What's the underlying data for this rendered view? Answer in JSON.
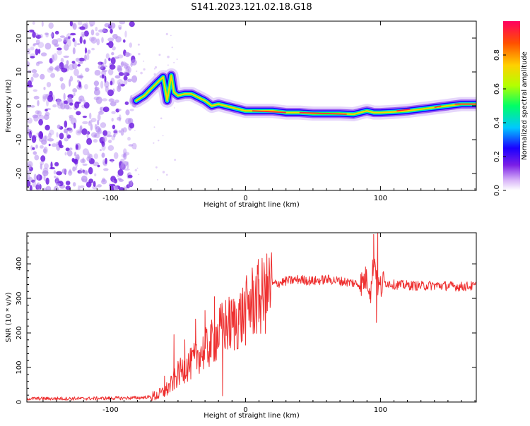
{
  "title": "S141.2023.121.02.18.G18",
  "chart_data": [
    {
      "type": "heatmap",
      "panel": "top",
      "title": "S141.2023.121.02.18.G18",
      "xlabel": "Height of straight line (km)",
      "ylabel": "Frequency (Hz)",
      "xlim": [
        -162,
        171
      ],
      "ylim": [
        -25,
        25
      ],
      "x_ticks": [
        -100,
        0,
        100
      ],
      "y_ticks": [
        -20,
        -10,
        0,
        10,
        20
      ],
      "colorbar": {
        "label": "Normalized spectral amplitude",
        "range": [
          0,
          1
        ],
        "ticks": [
          "0.0",
          "0.2",
          "0.4",
          "0.6",
          "0.8"
        ],
        "colors": [
          "#ffffff",
          "#d8b4f8",
          "#7b1fe6",
          "#1a00ff",
          "#00c8ff",
          "#00ff66",
          "#b4ff00",
          "#ffd000",
          "#ff5000",
          "#ff0060"
        ]
      },
      "noise_region": {
        "x_range": [
          -162,
          -82
        ],
        "note_colors": [
          "#b48cf0",
          "#7020e0"
        ]
      },
      "ridge": {
        "x": [
          -81,
          -75,
          -70,
          -65,
          -61,
          -58,
          -55,
          -53,
          -50,
          -45,
          -40,
          -35,
          -30,
          -25,
          -20,
          -15,
          -10,
          -5,
          0,
          10,
          20,
          30,
          40,
          50,
          60,
          70,
          80,
          85,
          90,
          95,
          100,
          110,
          120,
          130,
          140,
          150,
          160,
          171
        ],
        "y": [
          1.5,
          3,
          5,
          7,
          8.5,
          1.5,
          9,
          4,
          3,
          3.5,
          3.5,
          2.5,
          1.5,
          0,
          0.5,
          0,
          -0.5,
          -1,
          -1.5,
          -1.5,
          -1.5,
          -2,
          -2,
          -2.3,
          -2.3,
          -2.3,
          -2.5,
          -2,
          -1.5,
          -2,
          -2,
          -1.8,
          -1.5,
          -1,
          -0.5,
          0,
          0.5,
          0.5
        ]
      }
    },
    {
      "type": "line",
      "panel": "bottom",
      "xlabel": "Height of straight line (km)",
      "ylabel": "SNR (10 * v/v)",
      "xlim": [
        -162,
        171
      ],
      "ylim": [
        0,
        490
      ],
      "x_ticks": [
        -100,
        0,
        100
      ],
      "y_ticks": [
        0,
        100,
        200,
        300,
        400
      ],
      "color": "#ee3030",
      "series": [
        {
          "x": [
            -162,
            -120,
            -80,
            -70,
            -65,
            -60,
            -55,
            -50,
            -45,
            -40,
            -35,
            -30,
            -25,
            -20,
            -15,
            -10,
            -5,
            0,
            5,
            10,
            15,
            20,
            25,
            30,
            40,
            50,
            60,
            70,
            80,
            85,
            90,
            93,
            95,
            97,
            98,
            100,
            102,
            105,
            110,
            120,
            130,
            140,
            150,
            160,
            171
          ],
          "y": [
            10,
            10,
            12,
            15,
            20,
            30,
            50,
            80,
            100,
            110,
            140,
            150,
            170,
            200,
            220,
            225,
            240,
            260,
            290,
            300,
            310,
            340,
            345,
            350,
            355,
            350,
            355,
            350,
            345,
            340,
            360,
            320,
            420,
            380,
            340,
            330,
            345,
            345,
            340,
            338,
            336,
            338,
            336,
            334,
            336
          ]
        }
      ],
      "spikes": [
        {
          "x": -60,
          "y": 75
        },
        {
          "x": -53,
          "y": 195
        },
        {
          "x": -45,
          "y": 180
        },
        {
          "x": -37,
          "y": 240
        },
        {
          "x": -30,
          "y": 265
        },
        {
          "x": -23,
          "y": 305
        },
        {
          "x": -17,
          "y": 18
        },
        {
          "x": -12,
          "y": 265
        },
        {
          "x": -5,
          "y": 285
        },
        {
          "x": 3,
          "y": 320
        },
        {
          "x": 10,
          "y": 355
        },
        {
          "x": 15,
          "y": 370
        },
        {
          "x": 95,
          "y": 485
        },
        {
          "x": 97,
          "y": 230
        },
        {
          "x": 98,
          "y": 490
        }
      ]
    }
  ]
}
